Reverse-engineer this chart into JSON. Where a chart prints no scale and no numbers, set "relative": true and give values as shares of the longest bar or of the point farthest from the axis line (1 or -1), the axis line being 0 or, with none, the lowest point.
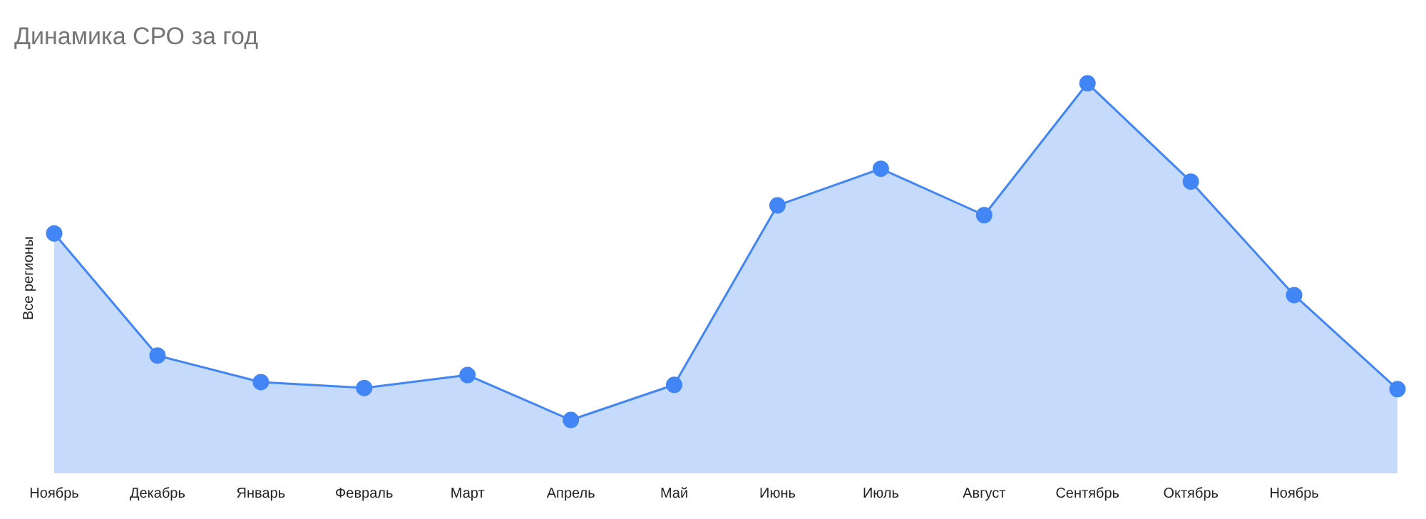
{
  "chart_data": {
    "type": "area",
    "title": "Динамика СРО за год",
    "ylabel": "Все регионы",
    "relative": true,
    "grid": false,
    "legend": false,
    "marker": "circle",
    "categories": [
      "Ноябрь",
      "Декабрь",
      "Январь",
      "Февраль",
      "Март",
      "Апрель",
      "Май",
      "Июнь",
      "Июль",
      "Август",
      "Сентябрь",
      "Октябрь",
      "Ноябрь",
      null
    ],
    "series": [
      {
        "color": "#4285f4",
        "values": [
          0.615,
          0.302,
          0.234,
          0.219,
          0.252,
          0.137,
          0.227,
          0.687,
          0.781,
          0.662,
          1,
          0.748,
          0.457,
          0.216
        ]
      }
    ]
  }
}
